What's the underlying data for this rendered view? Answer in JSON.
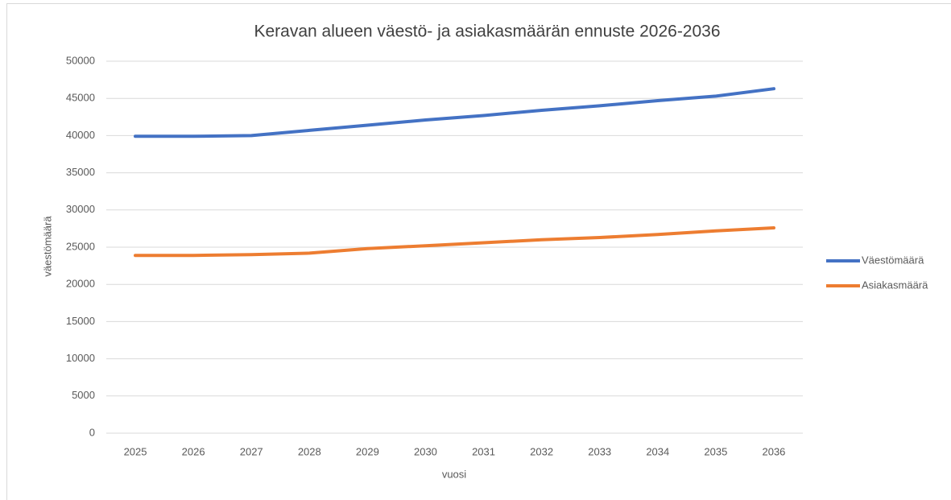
{
  "chart_data": {
    "type": "line",
    "title": "Keravan alueen väestö- ja asiakasmäärän ennuste 2026-2036",
    "x_label": "vuosi",
    "y_label": "väestömäärä",
    "categories": [
      "2025",
      "2026",
      "2027",
      "2028",
      "2029",
      "2030",
      "2031",
      "2032",
      "2033",
      "2034",
      "2035",
      "2036"
    ],
    "series": [
      {
        "name": "Väestömäärä",
        "color": "#4472c4",
        "values": [
          39900,
          39900,
          40000,
          40700,
          41400,
          42100,
          42700,
          43400,
          44000,
          44700,
          45300,
          46300
        ]
      },
      {
        "name": "Asiakasmäärä",
        "color": "#ed7d31",
        "values": [
          23900,
          23900,
          24000,
          24200,
          24800,
          25200,
          25600,
          26000,
          26300,
          26700,
          27200,
          27600
        ]
      }
    ],
    "ylim": [
      0,
      50000
    ],
    "yticks": [
      0,
      5000,
      10000,
      15000,
      20000,
      25000,
      30000,
      35000,
      40000,
      45000,
      50000
    ],
    "grid": true,
    "legend": "right"
  }
}
